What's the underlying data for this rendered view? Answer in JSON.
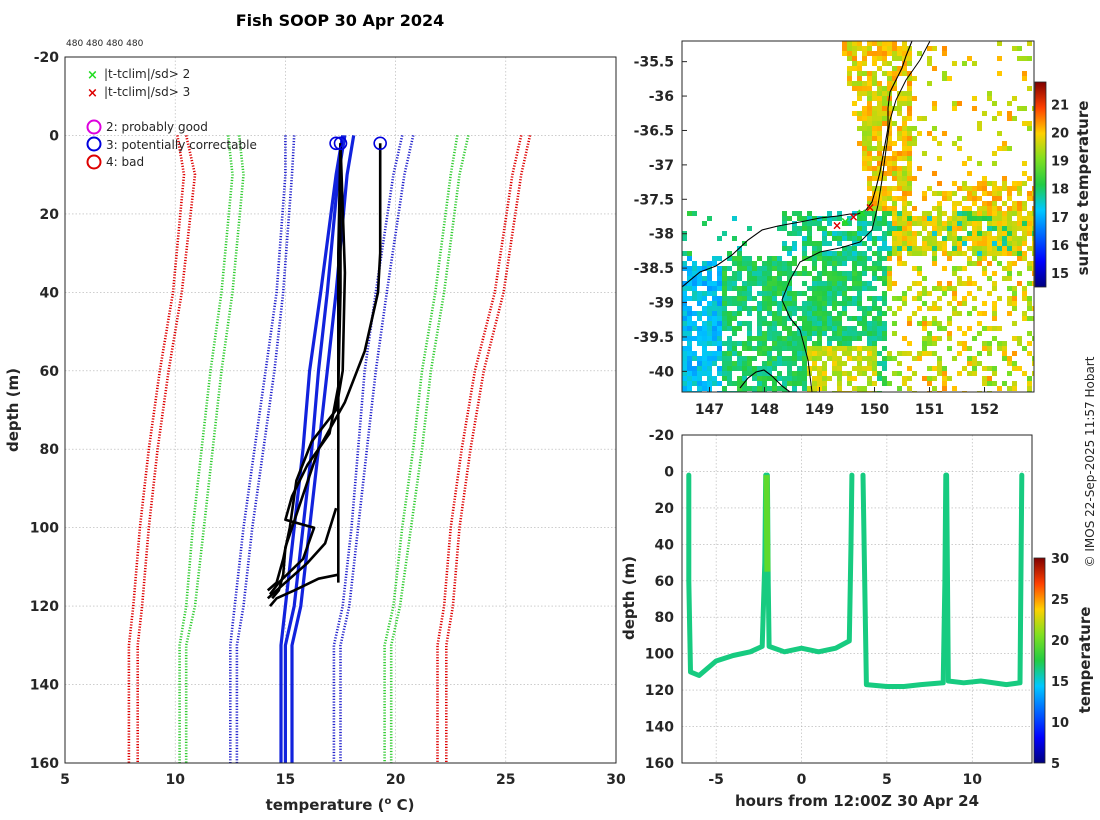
{
  "chart_data": [
    {
      "type": "line",
      "title": "Fish SOOP 30 Apr 2024",
      "counts_label": "480 480 480 480",
      "xlabel": "temperature (",
      "xlabel_sup": "o",
      "xlabel_unit": " C)",
      "ylabel": "depth (m)",
      "xlim": [
        5,
        30
      ],
      "ylim": [
        -20,
        160
      ],
      "xticks": [
        5,
        10,
        15,
        20,
        25,
        30
      ],
      "yticks": [
        -20,
        0,
        20,
        40,
        60,
        80,
        100,
        120,
        140,
        160
      ],
      "legend": [
        {
          "marker": "x",
          "color": "#22dd22",
          "label": "|t-tclim|/sd> 2"
        },
        {
          "marker": "x",
          "color": "#dd0000",
          "label": "|t-tclim|/sd> 3"
        },
        {
          "marker": "o",
          "color": "#dd00dd",
          "label": "2: probably good"
        },
        {
          "marker": "o",
          "color": "#0000dd",
          "label": "3: potentially correctable"
        },
        {
          "marker": "o",
          "color": "#dd0000",
          "label": "4: bad"
        }
      ],
      "series": [
        {
          "name": "clim -3sd a",
          "style": "dotted",
          "color": "#dd0000",
          "points": [
            [
              10.1,
              0
            ],
            [
              10.4,
              10
            ],
            [
              9.9,
              40
            ],
            [
              9.3,
              60
            ],
            [
              8.8,
              80
            ],
            [
              8.4,
              100
            ],
            [
              8.1,
              120
            ],
            [
              7.9,
              130
            ],
            [
              7.9,
              160
            ]
          ]
        },
        {
          "name": "clim -3sd b",
          "style": "dotted",
          "color": "#dd0000",
          "points": [
            [
              10.5,
              0
            ],
            [
              10.9,
              10
            ],
            [
              10.3,
              40
            ],
            [
              9.7,
              60
            ],
            [
              9.2,
              80
            ],
            [
              8.8,
              100
            ],
            [
              8.5,
              120
            ],
            [
              8.3,
              130
            ],
            [
              8.3,
              160
            ]
          ]
        },
        {
          "name": "clim +3sd a",
          "style": "dotted",
          "color": "#dd0000",
          "points": [
            [
              25.7,
              0
            ],
            [
              25.3,
              10
            ],
            [
              24.5,
              40
            ],
            [
              23.6,
              60
            ],
            [
              23.0,
              80
            ],
            [
              22.5,
              100
            ],
            [
              22.2,
              120
            ],
            [
              21.9,
              130
            ],
            [
              21.9,
              160
            ]
          ]
        },
        {
          "name": "clim +3sd b",
          "style": "dotted",
          "color": "#dd0000",
          "points": [
            [
              26.1,
              0
            ],
            [
              25.7,
              10
            ],
            [
              24.9,
              40
            ],
            [
              24.0,
              60
            ],
            [
              23.4,
              80
            ],
            [
              22.9,
              100
            ],
            [
              22.6,
              120
            ],
            [
              22.3,
              130
            ],
            [
              22.3,
              160
            ]
          ]
        },
        {
          "name": "clim -2sd a",
          "style": "dotted",
          "color": "#33cc33",
          "points": [
            [
              12.4,
              0
            ],
            [
              12.6,
              10
            ],
            [
              12.1,
              40
            ],
            [
              11.6,
              60
            ],
            [
              11.2,
              80
            ],
            [
              10.8,
              100
            ],
            [
              10.5,
              120
            ],
            [
              10.2,
              130
            ],
            [
              10.2,
              160
            ]
          ]
        },
        {
          "name": "clim -2sd b",
          "style": "dotted",
          "color": "#33cc33",
          "points": [
            [
              12.9,
              0
            ],
            [
              13.1,
              10
            ],
            [
              12.6,
              40
            ],
            [
              12.1,
              60
            ],
            [
              11.7,
              80
            ],
            [
              11.3,
              100
            ],
            [
              10.9,
              120
            ],
            [
              10.5,
              130
            ],
            [
              10.5,
              160
            ]
          ]
        },
        {
          "name": "clim +2sd a",
          "style": "dotted",
          "color": "#33cc33",
          "points": [
            [
              22.8,
              0
            ],
            [
              22.5,
              10
            ],
            [
              21.8,
              40
            ],
            [
              21.2,
              60
            ],
            [
              20.8,
              80
            ],
            [
              20.3,
              100
            ],
            [
              19.9,
              120
            ],
            [
              19.5,
              130
            ],
            [
              19.5,
              160
            ]
          ]
        },
        {
          "name": "clim +2sd b",
          "style": "dotted",
          "color": "#33cc33",
          "points": [
            [
              23.3,
              0
            ],
            [
              22.9,
              10
            ],
            [
              22.2,
              40
            ],
            [
              21.6,
              60
            ],
            [
              21.2,
              80
            ],
            [
              20.7,
              100
            ],
            [
              20.2,
              120
            ],
            [
              19.8,
              130
            ],
            [
              19.8,
              160
            ]
          ]
        },
        {
          "name": "clim -1sd a",
          "style": "dotted",
          "color": "#2222cc",
          "points": [
            [
              15.0,
              0
            ],
            [
              15.0,
              10
            ],
            [
              14.6,
              40
            ],
            [
              14.1,
              60
            ],
            [
              13.6,
              80
            ],
            [
              13.1,
              100
            ],
            [
              12.7,
              120
            ],
            [
              12.5,
              130
            ],
            [
              12.5,
              160
            ]
          ]
        },
        {
          "name": "clim -1sd b",
          "style": "dotted",
          "color": "#2222cc",
          "points": [
            [
              15.4,
              0
            ],
            [
              15.3,
              10
            ],
            [
              14.9,
              40
            ],
            [
              14.5,
              60
            ],
            [
              14.0,
              80
            ],
            [
              13.5,
              100
            ],
            [
              13.1,
              120
            ],
            [
              12.8,
              130
            ],
            [
              12.8,
              160
            ]
          ]
        },
        {
          "name": "clim +1sd a",
          "style": "dotted",
          "color": "#2222cc",
          "points": [
            [
              20.3,
              0
            ],
            [
              19.9,
              10
            ],
            [
              19.1,
              40
            ],
            [
              18.6,
              60
            ],
            [
              18.3,
              80
            ],
            [
              18.0,
              100
            ],
            [
              17.6,
              120
            ],
            [
              17.2,
              130
            ],
            [
              17.2,
              160
            ]
          ]
        },
        {
          "name": "clim +1sd b",
          "style": "dotted",
          "color": "#2222cc",
          "points": [
            [
              20.8,
              0
            ],
            [
              20.4,
              10
            ],
            [
              19.6,
              40
            ],
            [
              19.1,
              60
            ],
            [
              18.7,
              80
            ],
            [
              18.3,
              100
            ],
            [
              17.9,
              120
            ],
            [
              17.5,
              130
            ],
            [
              17.5,
              160
            ]
          ]
        },
        {
          "name": "clim mean a",
          "style": "solid",
          "color": "#1122dd",
          "points": [
            [
              17.7,
              0
            ],
            [
              17.4,
              10
            ],
            [
              16.9,
              40
            ],
            [
              16.5,
              60
            ],
            [
              16.2,
              80
            ],
            [
              15.8,
              100
            ],
            [
              15.4,
              120
            ],
            [
              15.0,
              130
            ],
            [
              15.0,
              160
            ]
          ]
        },
        {
          "name": "clim mean b",
          "style": "solid",
          "color": "#1122dd",
          "points": [
            [
              18.1,
              0
            ],
            [
              17.8,
              10
            ],
            [
              17.3,
              40
            ],
            [
              16.9,
              60
            ],
            [
              16.5,
              80
            ],
            [
              16.1,
              100
            ],
            [
              15.7,
              120
            ],
            [
              15.3,
              130
            ],
            [
              15.3,
              160
            ]
          ]
        },
        {
          "name": "clim mean c",
          "style": "solid",
          "color": "#1122dd",
          "points": [
            [
              17.6,
              0
            ],
            [
              17.3,
              10
            ],
            [
              16.6,
              40
            ],
            [
              16.1,
              60
            ],
            [
              15.8,
              80
            ],
            [
              15.4,
              100
            ],
            [
              15.0,
              120
            ],
            [
              14.8,
              130
            ],
            [
              14.8,
              160
            ]
          ]
        },
        {
          "name": "profile 1",
          "style": "solid",
          "color": "#000000",
          "points": [
            [
              17.5,
              2
            ],
            [
              17.4,
              30
            ],
            [
              17.4,
              60
            ],
            [
              17.4,
              90
            ],
            [
              17.4,
              110
            ],
            [
              17.4,
              114
            ]
          ]
        },
        {
          "name": "profile 2",
          "style": "solid",
          "color": "#000000",
          "points": [
            [
              19.3,
              2
            ],
            [
              19.3,
              30
            ],
            [
              19.2,
              40
            ],
            [
              18.6,
              55
            ],
            [
              17.7,
              68
            ],
            [
              16.5,
              80
            ],
            [
              15.6,
              95
            ],
            [
              15.0,
              105
            ],
            [
              14.9,
              112
            ],
            [
              14.7,
              116
            ],
            [
              14.4,
              118
            ]
          ]
        },
        {
          "name": "profile 3",
          "style": "solid",
          "color": "#000000",
          "points": [
            [
              17.5,
              2
            ],
            [
              17.7,
              35
            ],
            [
              17.6,
              60
            ],
            [
              17.3,
              70
            ],
            [
              16.2,
              78
            ],
            [
              15.5,
              88
            ],
            [
              15.2,
              100
            ],
            [
              14.9,
              108
            ],
            [
              14.6,
              114
            ],
            [
              14.2,
              116
            ]
          ]
        },
        {
          "name": "profile 4",
          "style": "solid",
          "color": "#000000",
          "points": [
            [
              17.5,
              2
            ],
            [
              17.5,
              40
            ],
            [
              17.4,
              64
            ],
            [
              17.0,
              76
            ],
            [
              16.0,
              84
            ],
            [
              15.3,
              92
            ],
            [
              15.0,
              98
            ],
            [
              16.3,
              100
            ],
            [
              15.8,
              108
            ],
            [
              14.7,
              114
            ],
            [
              14.3,
              117
            ]
          ]
        },
        {
          "name": "profile 5",
          "style": "solid",
          "color": "#000000",
          "points": [
            [
              17.3,
              95
            ],
            [
              16.8,
              104
            ],
            [
              16.0,
              109
            ],
            [
              15.2,
              113
            ],
            [
              14.6,
              116
            ],
            [
              14.2,
              118
            ]
          ]
        },
        {
          "name": "profile 6",
          "style": "solid",
          "color": "#000000",
          "points": [
            [
              17.4,
              112
            ],
            [
              16.5,
              113
            ],
            [
              15.4,
              116
            ],
            [
              14.6,
              118
            ],
            [
              14.3,
              120
            ]
          ]
        }
      ],
      "flag_circles": [
        [
          17.3,
          2
        ],
        [
          17.5,
          2
        ],
        [
          19.3,
          2
        ]
      ]
    },
    {
      "type": "heatmap",
      "colorbar_label": "surface temperature",
      "colorbar_ticks": [
        15,
        16,
        17,
        18,
        19,
        20,
        21
      ],
      "colorbar_range": [
        14.5,
        21.8
      ],
      "xlim": [
        146.5,
        152.9
      ],
      "ylim": [
        -40.3,
        -35.2
      ],
      "xticks": [
        147,
        148,
        149,
        150,
        151,
        152
      ],
      "yticks": [
        -35.5,
        -36,
        -36.5,
        -37,
        -37.5,
        -38,
        -38.5,
        -39,
        -39.5,
        -40
      ]
    },
    {
      "type": "scatter",
      "xlabel": "hours from 12:00Z 30 Apr 24",
      "ylabel": "depth (m)",
      "xlim": [
        -7,
        13.5
      ],
      "ylim": [
        -20,
        160
      ],
      "xticks": [
        -5,
        0,
        5,
        10
      ],
      "yticks": [
        -20,
        0,
        20,
        40,
        60,
        80,
        100,
        120,
        140,
        160
      ],
      "colorbar_label": "temperature",
      "colorbar_ticks": [
        5,
        10,
        15,
        20,
        25,
        30
      ],
      "colorbar_range": [
        5,
        30
      ]
    }
  ],
  "watermark": "© IMOS 22-Sep-2025 11:57 Hobart"
}
